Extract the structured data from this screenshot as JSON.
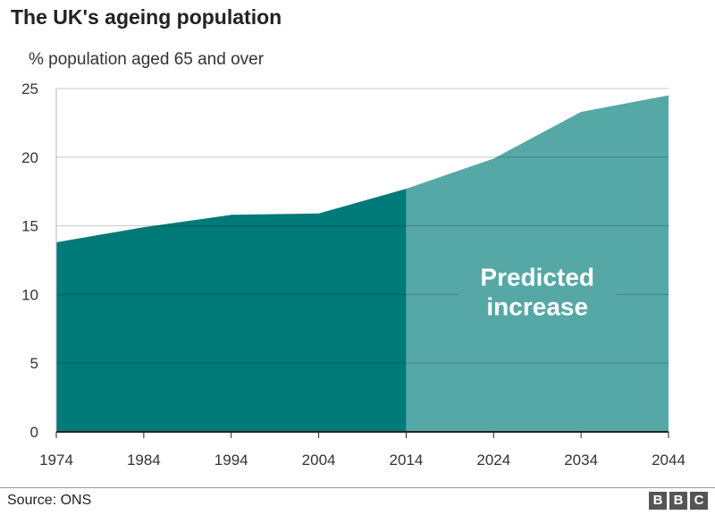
{
  "header": {
    "title": "The UK's ageing population",
    "subtitle": "% population aged 65 and over"
  },
  "footer": {
    "source": "Source: ONS",
    "logo_letters": [
      "B",
      "B",
      "C"
    ]
  },
  "chart_data": {
    "type": "area",
    "title": "The UK's ageing population",
    "ylabel": "% population aged 65 and over",
    "xlabel": "",
    "x": [
      1974,
      1984,
      1994,
      2004,
      2014,
      2024,
      2034,
      2044
    ],
    "series": [
      {
        "values": [
          13.8,
          14.9,
          15.8,
          15.9,
          17.7,
          19.9,
          23.3,
          24.5
        ]
      }
    ],
    "historical_end": 2014,
    "xlim": [
      1974,
      2044
    ],
    "ylim": [
      0,
      25
    ],
    "yticks": [
      0,
      5,
      10,
      15,
      20,
      25
    ],
    "xticks": [
      1974,
      1984,
      1994,
      2004,
      2014,
      2024,
      2034,
      2044
    ],
    "annotation": {
      "lines": [
        "Predicted",
        "increase"
      ],
      "x": 2029,
      "y": 10
    },
    "colors": {
      "historical": "#007a78",
      "predicted": "#56a8a6",
      "grid": "#c8c8c8",
      "axis": "#222222"
    },
    "grid": true
  }
}
